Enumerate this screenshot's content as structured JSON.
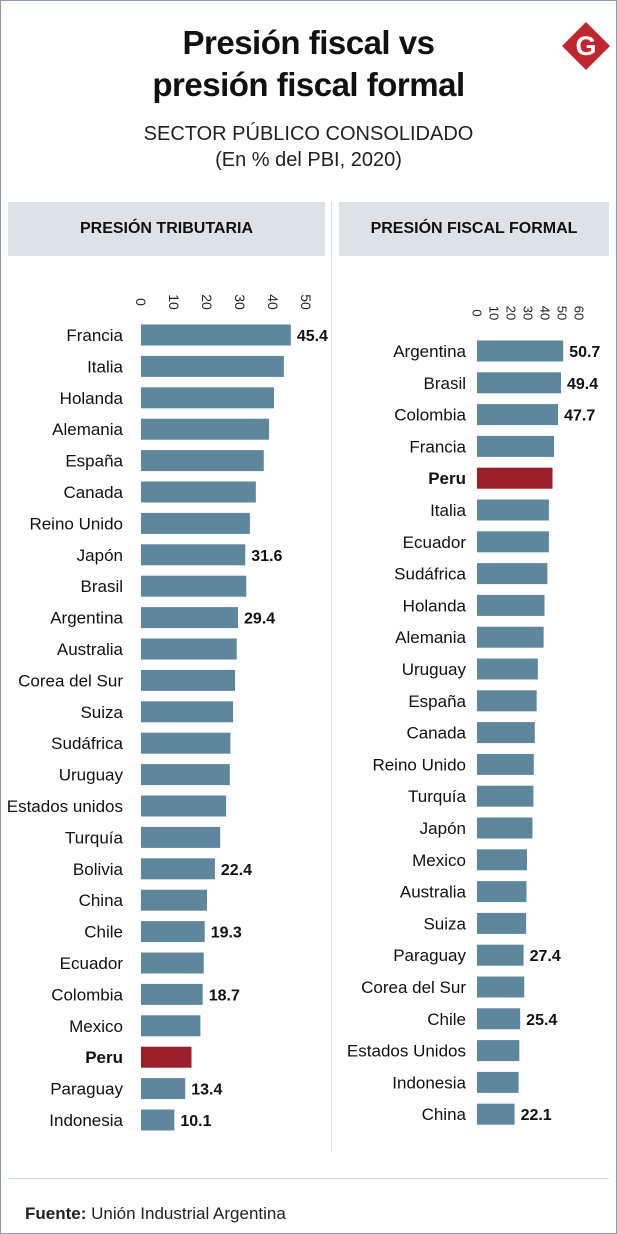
{
  "header": {
    "title_line1": "Presión fiscal vs",
    "title_line2": "presión fiscal formal",
    "subtitle_line1": "SECTOR PÚBLICO CONSOLIDADO",
    "subtitle_line2": "(En % del PBI, 2020)",
    "logo_letter": "G"
  },
  "footer": {
    "source_label": "Fuente:",
    "source_text": "Unión Industrial Argentina"
  },
  "colors": {
    "bar": "#5e879e",
    "highlight": "#9b1f2a",
    "logo": "#c0262e",
    "panel_header": "#dde2e6"
  },
  "chart_data": [
    {
      "type": "bar",
      "orientation": "horizontal",
      "title": "PRESIÓN TRIBUTARIA",
      "xlim": [
        0,
        50
      ],
      "ticks": [
        "0",
        "10",
        "20",
        "30",
        "40",
        "50"
      ],
      "highlight": "Peru",
      "categories": [
        "Francia",
        "Italia",
        "Holanda",
        "Alemania",
        "España",
        "Canada",
        "Reino Unido",
        "Japón",
        "Brasil",
        "Argentina",
        "Australia",
        "Corea del Sur",
        "Suiza",
        "Sudáfrica",
        "Uruguay",
        "Estados unidos",
        "Turquía",
        "Bolivia",
        "China",
        "Chile",
        "Ecuador",
        "Colombia",
        "Mexico",
        "Peru",
        "Paraguay",
        "Indonesia"
      ],
      "values": [
        45.4,
        43.3,
        40.3,
        38.8,
        37.2,
        34.8,
        33.0,
        31.6,
        31.9,
        29.4,
        29.0,
        28.5,
        27.9,
        27.1,
        26.9,
        25.8,
        24.0,
        22.4,
        20.0,
        19.3,
        19.0,
        18.7,
        18.0,
        15.3,
        13.4,
        10.1
      ],
      "labels": [
        "45.4",
        "",
        "",
        "",
        "",
        "",
        "",
        "31.6",
        "",
        "29.4",
        "",
        "",
        "",
        "",
        "",
        "",
        "",
        "22.4",
        "",
        "19.3",
        "",
        "18.7",
        "",
        "",
        "13.4",
        "10.1"
      ]
    },
    {
      "type": "bar",
      "orientation": "horizontal",
      "title": "PRESIÓN FISCAL FORMAL",
      "xlim": [
        0,
        60
      ],
      "ticks": [
        "0",
        "10",
        "20",
        "30",
        "40",
        "50",
        "60"
      ],
      "highlight": "Peru",
      "categories": [
        "Argentina",
        "Brasil",
        "Colombia",
        "Francia",
        "Peru",
        "Italia",
        "Ecuador",
        "Sudáfrica",
        "Holanda",
        "Alemania",
        "Uruguay",
        "España",
        "Canada",
        "Reino Unido",
        "Turquía",
        "Japón",
        "Mexico",
        "Australia",
        "Suiza",
        "Paraguay",
        "Corea del Sur",
        "Chile",
        "Estados Unidos",
        "Indonesia",
        "China"
      ],
      "values": [
        50.7,
        49.4,
        47.7,
        45.3,
        44.4,
        42.3,
        42.3,
        41.4,
        39.7,
        39.2,
        35.8,
        35.1,
        34.0,
        33.4,
        33.2,
        32.6,
        29.4,
        29.1,
        28.9,
        27.4,
        27.8,
        25.4,
        24.9,
        24.5,
        22.1
      ],
      "labels": [
        "50.7",
        "49.4",
        "47.7",
        "",
        "",
        "",
        "",
        "",
        "",
        "",
        "",
        "",
        "",
        "",
        "",
        "",
        "",
        "",
        "",
        "27.4",
        "",
        "25.4",
        "",
        "",
        "22.1"
      ]
    }
  ]
}
